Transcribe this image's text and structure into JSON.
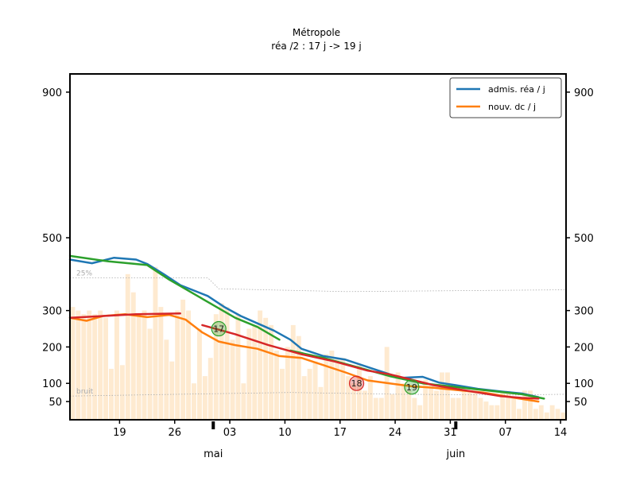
{
  "title": "Métropole",
  "subtitle": "réa /2 : 17 j -> 19 j",
  "chart_data": {
    "type": "line",
    "ylim": [
      0,
      950
    ],
    "y_ticks": [
      50,
      100,
      200,
      300,
      500,
      900
    ],
    "x_range": [
      0,
      90
    ],
    "x_ticks": [
      {
        "x": 9,
        "label": "19"
      },
      {
        "x": 19,
        "label": "26"
      },
      {
        "x": 29,
        "label": "03"
      },
      {
        "x": 39,
        "label": "10"
      },
      {
        "x": 49,
        "label": "17"
      },
      {
        "x": 59,
        "label": "24"
      },
      {
        "x": 69,
        "label": "31"
      },
      {
        "x": 79,
        "label": "07"
      },
      {
        "x": 89,
        "label": "14"
      }
    ],
    "month_labels": [
      {
        "x": 26,
        "label": "mai"
      },
      {
        "x": 70,
        "label": "juin"
      }
    ],
    "legend": [
      {
        "label": "admis. réa / j",
        "color": "#1f77b4"
      },
      {
        "label": "nouv. dc / j",
        "color": "#ff7f0e"
      }
    ],
    "legend_position": "top-right",
    "bars": {
      "color": "#fde3c0",
      "values": [
        310,
        300,
        290,
        300,
        290,
        300,
        280,
        140,
        300,
        150,
        400,
        350,
        290,
        300,
        250,
        420,
        310,
        220,
        160,
        300,
        330,
        300,
        100,
        250,
        120,
        170,
        290,
        320,
        310,
        220,
        290,
        100,
        250,
        260,
        300,
        280,
        260,
        190,
        140,
        200,
        260,
        230,
        120,
        140,
        160,
        90,
        180,
        190,
        170,
        170,
        120,
        100,
        150,
        80,
        120,
        60,
        60,
        200,
        70,
        130,
        100,
        80,
        60,
        40,
        110,
        100,
        80,
        130,
        130,
        60,
        60,
        80,
        80,
        80,
        60,
        50,
        40,
        40,
        80,
        80,
        60,
        30,
        80,
        80,
        30,
        40,
        20,
        40,
        30,
        20
      ]
    },
    "series": [
      {
        "color": "#1f77b4",
        "points": [
          [
            0,
            440
          ],
          [
            4,
            430
          ],
          [
            8,
            445
          ],
          [
            12,
            440
          ],
          [
            14,
            428
          ],
          [
            17,
            400
          ],
          [
            20,
            370
          ],
          [
            25,
            340
          ],
          [
            28,
            310
          ],
          [
            31,
            285
          ],
          [
            34,
            265
          ],
          [
            37,
            245
          ],
          [
            40,
            220
          ],
          [
            42,
            195
          ],
          [
            46,
            175
          ],
          [
            50,
            165
          ],
          [
            55,
            140
          ],
          [
            60,
            115
          ],
          [
            64,
            118
          ],
          [
            67,
            102
          ],
          [
            70,
            95
          ],
          [
            74,
            85
          ],
          [
            78,
            78
          ],
          [
            82,
            72
          ],
          [
            85,
            62
          ]
        ]
      },
      {
        "color": "#ff7f0e",
        "points": [
          [
            0,
            280
          ],
          [
            3,
            272
          ],
          [
            6,
            285
          ],
          [
            10,
            290
          ],
          [
            14,
            282
          ],
          [
            18,
            288
          ],
          [
            21,
            275
          ],
          [
            24,
            240
          ],
          [
            27,
            215
          ],
          [
            30,
            205
          ],
          [
            34,
            195
          ],
          [
            38,
            175
          ],
          [
            42,
            170
          ],
          [
            46,
            150
          ],
          [
            50,
            130
          ],
          [
            54,
            108
          ],
          [
            58,
            100
          ],
          [
            62,
            92
          ],
          [
            66,
            88
          ],
          [
            70,
            82
          ],
          [
            75,
            75
          ],
          [
            80,
            62
          ],
          [
            85,
            50
          ]
        ]
      },
      {
        "color": "#2ca02c",
        "points": [
          [
            0,
            450
          ],
          [
            7,
            435
          ],
          [
            14,
            425
          ],
          [
            18,
            385
          ],
          [
            22,
            350
          ],
          [
            26,
            315
          ],
          [
            30,
            280
          ],
          [
            34,
            255
          ],
          [
            38,
            220
          ]
        ]
      },
      {
        "color": "#2ca02c",
        "points": [
          [
            40,
            190
          ],
          [
            46,
            170
          ],
          [
            52,
            145
          ],
          [
            58,
            120
          ],
          [
            64,
            100
          ],
          [
            70,
            90
          ],
          [
            76,
            80
          ],
          [
            82,
            70
          ],
          [
            86,
            58
          ]
        ]
      },
      {
        "color": "#d62728",
        "points": [
          [
            0,
            280
          ],
          [
            6,
            285
          ],
          [
            12,
            290
          ],
          [
            20,
            292
          ]
        ]
      },
      {
        "color": "#d62728",
        "points": [
          [
            24,
            260
          ],
          [
            30,
            235
          ],
          [
            36,
            205
          ],
          [
            42,
            180
          ],
          [
            48,
            160
          ],
          [
            54,
            135
          ],
          [
            58,
            125
          ],
          [
            62,
            110
          ],
          [
            66,
            95
          ],
          [
            70,
            85
          ],
          [
            74,
            75
          ],
          [
            78,
            65
          ],
          [
            82,
            60
          ],
          [
            85,
            58
          ]
        ]
      }
    ],
    "markers": [
      {
        "x": 27,
        "y": 250,
        "label": "17",
        "color": "#2ca02c"
      },
      {
        "x": 52,
        "y": 100,
        "label": "18",
        "color": "#d62728"
      },
      {
        "x": 62,
        "y": 90,
        "label": "19",
        "color": "#2ca02c"
      }
    ],
    "reference_lines": [
      {
        "label": "25%",
        "color": "#aaaaaa",
        "points": [
          [
            0,
            390
          ],
          [
            25,
            390
          ],
          [
            27,
            360
          ],
          [
            50,
            352
          ],
          [
            90,
            357
          ]
        ]
      },
      {
        "label": "bruit",
        "color": "#aaaaaa",
        "points": [
          [
            0,
            65
          ],
          [
            20,
            70
          ],
          [
            40,
            75
          ],
          [
            60,
            70
          ],
          [
            80,
            68
          ],
          [
            90,
            70
          ]
        ]
      }
    ]
  }
}
